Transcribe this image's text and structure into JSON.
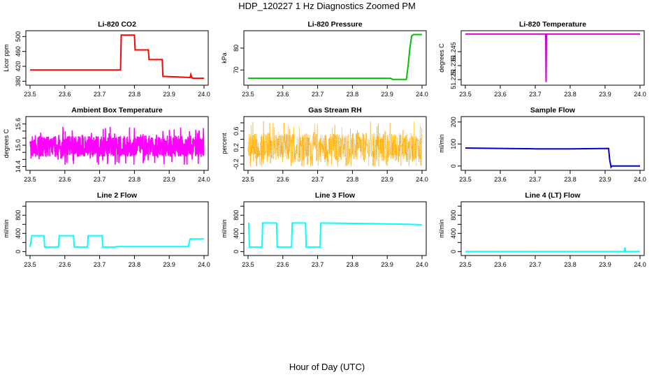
{
  "figure": {
    "title": "HDP_120227  1 Hz Diagnostics Zoomed PM",
    "xlabel": "Hour of Day (UTC)"
  },
  "chart_data": [
    {
      "type": "line",
      "title": "Li-820 CO2",
      "ylabel": "Licor ppm",
      "color": "#ff0000",
      "xlim": [
        23.5,
        24.0
      ],
      "ylim": [
        375,
        510
      ],
      "xticks": [
        23.5,
        23.6,
        23.7,
        23.8,
        23.9,
        24.0
      ],
      "yticks": [
        380,
        420,
        460,
        500
      ],
      "series": [
        {
          "x": [
            23.5,
            23.76,
            23.762,
            23.8,
            23.802,
            23.84,
            23.842,
            23.88,
            23.882,
            23.96,
            23.962,
            23.965,
            23.97,
            24.0
          ],
          "y": [
            410,
            410,
            504,
            504,
            464,
            464,
            438,
            438,
            393,
            390,
            398,
            389,
            388,
            388
          ]
        }
      ]
    },
    {
      "type": "line",
      "title": "Li-820 Pressure",
      "ylabel": "kPa",
      "color": "#00c000",
      "xlim": [
        23.5,
        24.0
      ],
      "ylim": [
        64,
        87
      ],
      "xticks": [
        23.5,
        23.6,
        23.7,
        23.8,
        23.9,
        24.0
      ],
      "yticks": [
        70,
        80
      ],
      "series": [
        {
          "x": [
            23.5,
            23.91,
            23.915,
            23.955,
            23.96,
            23.965,
            23.97,
            23.975,
            24.0
          ],
          "y": [
            66.2,
            66.2,
            65.7,
            65.7,
            72,
            80,
            85.5,
            86.2,
            86.2
          ]
        }
      ]
    },
    {
      "type": "line",
      "title": "Li-820 Temperature",
      "ylabel": "degrees C",
      "color": "#cc00cc",
      "xlim": [
        23.5,
        24.0
      ],
      "ylim": [
        51.2225,
        51.2585
      ],
      "xticks": [
        23.5,
        23.6,
        23.7,
        23.8,
        23.9,
        24.0
      ],
      "yticks": [
        51.225,
        51.235,
        51.245
      ],
      "ytick_labels": [
        "51.225",
        "51.235",
        "51.245"
      ],
      "series": [
        {
          "x": [
            23.5,
            23.73,
            23.731,
            23.732,
            23.733,
            24.0
          ],
          "y": [
            51.2576,
            51.2576,
            51.2232,
            51.2576,
            51.2576,
            51.2576
          ]
        }
      ]
    },
    {
      "type": "line",
      "title": "Ambient Box Temperature",
      "ylabel": "degrees C",
      "color": "#ff00ff",
      "xlim": [
        23.5,
        24.0
      ],
      "ylim": [
        14.35,
        15.75
      ],
      "xticks": [
        23.5,
        23.6,
        23.7,
        23.8,
        23.9,
        24.0
      ],
      "yticks": [
        14.4,
        14.6,
        14.8,
        15.0,
        15.2,
        15.4,
        15.6
      ],
      "ytick_labels": [
        "14.4",
        "",
        "",
        "15.0",
        "",
        "",
        "15.6"
      ],
      "noise": {
        "mean": 14.97,
        "amplitude": 0.55,
        "min": 14.45,
        "max": 15.6
      }
    },
    {
      "type": "scatter",
      "title": "Gas Stream RH",
      "ylabel": "percent",
      "color": "#ffaa00",
      "xlim": [
        23.5,
        24.0
      ],
      "ylim": [
        -0.3,
        0.9
      ],
      "xticks": [
        23.5,
        23.6,
        23.7,
        23.8,
        23.9,
        24.0
      ],
      "yticks": [
        -0.2,
        0.0,
        0.2,
        0.4,
        0.6,
        0.8
      ],
      "ytick_labels": [
        "-0.2",
        "",
        "0.2",
        "",
        "0.6",
        ""
      ],
      "noise": {
        "mean": 0.2,
        "amplitude": 0.65,
        "min": -0.25,
        "max": 0.85
      }
    },
    {
      "type": "line",
      "title": "Sample Flow",
      "ylabel": "ml/min",
      "color": "#0000cc",
      "xlim": [
        23.5,
        24.0
      ],
      "ylim": [
        -10,
        215
      ],
      "xticks": [
        23.5,
        23.6,
        23.7,
        23.8,
        23.9,
        24.0
      ],
      "yticks": [
        0,
        100,
        200
      ],
      "series": [
        {
          "x": [
            23.5,
            23.6,
            23.7,
            23.8,
            23.91,
            23.913,
            23.917,
            23.92,
            23.93,
            24.0
          ],
          "y": [
            82,
            80,
            78,
            78,
            80,
            30,
            -5,
            0,
            0,
            0
          ]
        }
      ]
    },
    {
      "type": "line",
      "title": "Line 2 Flow",
      "ylabel": "ml/min",
      "color": "#00ffff",
      "xlim": [
        23.5,
        24.0
      ],
      "ylim": [
        -40,
        1050
      ],
      "xticks": [
        23.5,
        23.6,
        23.7,
        23.8,
        23.9,
        24.0
      ],
      "yticks": [
        0,
        200,
        400,
        600,
        800,
        1000
      ],
      "ytick_labels": [
        "0",
        "",
        "400",
        "",
        "800",
        ""
      ],
      "series": [
        {
          "x": [
            23.5,
            23.505,
            23.54,
            23.542,
            23.582,
            23.584,
            23.625,
            23.627,
            23.665,
            23.667,
            23.707,
            23.709,
            23.745,
            23.75,
            23.955,
            23.96,
            24.0
          ],
          "y": [
            100,
            350,
            350,
            100,
            100,
            350,
            350,
            100,
            100,
            350,
            350,
            100,
            100,
            110,
            110,
            280,
            280
          ]
        }
      ]
    },
    {
      "type": "line",
      "title": "Line 3 Flow",
      "ylabel": "ml/min",
      "color": "#00ffff",
      "xlim": [
        23.5,
        24.0
      ],
      "ylim": [
        -40,
        1050
      ],
      "xticks": [
        23.5,
        23.6,
        23.7,
        23.8,
        23.9,
        24.0
      ],
      "yticks": [
        0,
        200,
        400,
        600,
        800,
        1000
      ],
      "ytick_labels": [
        "0",
        "",
        "400",
        "",
        "800",
        ""
      ],
      "series": [
        {
          "x": [
            23.5,
            23.502,
            23.504,
            23.54,
            23.542,
            23.582,
            23.584,
            23.625,
            23.627,
            23.665,
            23.667,
            23.707,
            23.709,
            23.8,
            23.9,
            23.96,
            24.0
          ],
          "y": [
            620,
            620,
            100,
            100,
            630,
            630,
            100,
            100,
            630,
            630,
            100,
            100,
            630,
            620,
            610,
            600,
            590
          ]
        }
      ]
    },
    {
      "type": "line",
      "title": "Line 4 (LT) Flow",
      "ylabel": "ml/min",
      "color": "#00ffff",
      "xlim": [
        23.5,
        24.0
      ],
      "ylim": [
        -40,
        1050
      ],
      "xticks": [
        23.5,
        23.6,
        23.7,
        23.8,
        23.9,
        24.0
      ],
      "yticks": [
        0,
        200,
        400,
        600,
        800,
        1000
      ],
      "ytick_labels": [
        "0",
        "",
        "400",
        "",
        "800",
        ""
      ],
      "series": [
        {
          "x": [
            23.5,
            23.955,
            23.957,
            23.959,
            23.961,
            24.0
          ],
          "y": [
            0,
            0,
            90,
            0,
            0,
            0
          ]
        }
      ]
    }
  ]
}
